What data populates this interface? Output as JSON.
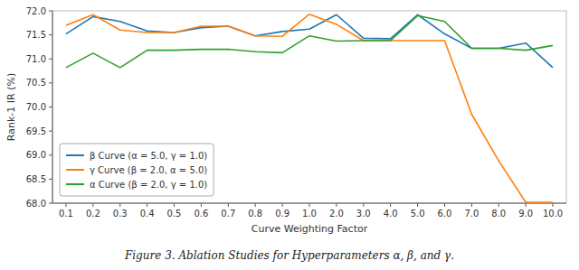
{
  "chart_data": {
    "type": "line",
    "caption": "Figure 3. Ablation Studies for Hyperparameters α, β, and γ.",
    "xlabel": "Curve Weighting Factor",
    "ylabel": "Rank-1 IR (%)",
    "categories": [
      "0.1",
      "0.2",
      "0.3",
      "0.4",
      "0.5",
      "0.6",
      "0.7",
      "0.8",
      "0.9",
      "1.0",
      "2.0",
      "3.0",
      "4.0",
      "5.0",
      "6.0",
      "7.0",
      "8.0",
      "9.0",
      "10.0"
    ],
    "series": [
      {
        "name": "β Curve (α = 5.0, γ = 1.0)",
        "color": "#1f77b4",
        "values": [
          71.52,
          71.88,
          71.78,
          71.58,
          71.55,
          71.65,
          71.68,
          71.48,
          71.57,
          71.62,
          71.92,
          71.43,
          71.42,
          71.92,
          71.52,
          71.22,
          71.22,
          71.33,
          70.82
        ]
      },
      {
        "name": "γ Curve (β = 2.0, α = 5.0)",
        "color": "#ff7f0e",
        "values": [
          71.7,
          71.92,
          71.6,
          71.55,
          71.55,
          71.68,
          71.68,
          71.48,
          71.47,
          71.93,
          71.72,
          71.38,
          71.38,
          71.38,
          71.38,
          69.85,
          68.88,
          68.02,
          68.02
        ]
      },
      {
        "name": "α Curve (β = 2.0, γ = 1.0)",
        "color": "#2ca02c",
        "values": [
          70.82,
          71.12,
          70.82,
          71.18,
          71.18,
          71.2,
          71.2,
          71.15,
          71.13,
          71.48,
          71.37,
          71.38,
          71.38,
          71.9,
          71.78,
          71.22,
          71.22,
          71.18,
          71.28
        ]
      }
    ],
    "ylim": [
      68.0,
      72.0
    ],
    "yticks": [
      {
        "value": 68,
        "label": "68.0"
      },
      68.5,
      {
        "value": 69,
        "label": "69.0"
      },
      69.5,
      {
        "value": 70,
        "label": "70.0"
      },
      70.5,
      {
        "value": 71,
        "label": "71.0"
      },
      71.5,
      {
        "value": 72,
        "label": "72.0"
      }
    ],
    "legend": "lower left",
    "grid": false
  }
}
